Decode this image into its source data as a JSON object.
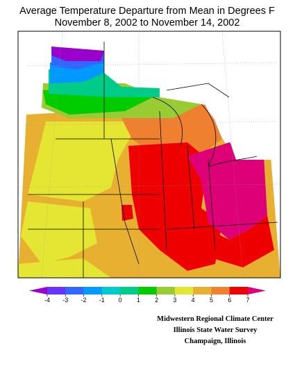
{
  "title": [
    "Average Temperature Departure from Mean in Degrees F",
    "November 8, 2002 to November 14, 2002"
  ],
  "colorbar": {
    "ticks": [
      -4,
      -3,
      -2,
      -1,
      0,
      1,
      2,
      3,
      4,
      5,
      6,
      7
    ],
    "colors": [
      "#9900cc",
      "#6633ff",
      "#3366ff",
      "#0099ff",
      "#00cccc",
      "#00cc88",
      "#00cc00",
      "#99cc33",
      "#e5e533",
      "#e8b030",
      "#ee8030",
      "#ee0000",
      "#dd0077"
    ]
  },
  "credits": [
    "Midwestern Regional Climate Center",
    "Illinois State Water Survey",
    "Champaign, Illinois"
  ]
}
